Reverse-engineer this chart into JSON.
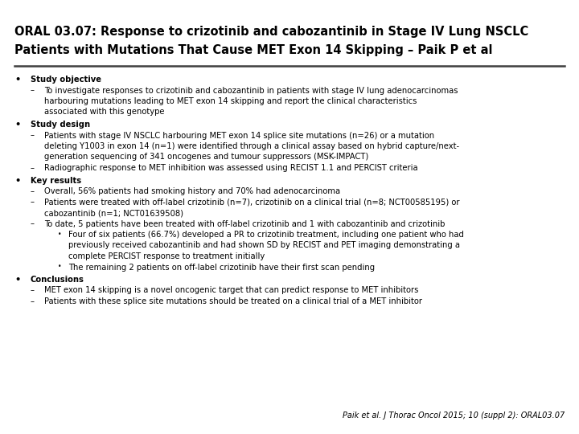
{
  "title_line1": "ORAL 03.07: Response to crizotinib and cabozantinib in Stage IV Lung NSCLC",
  "title_line2": "Patients with Mutations That Cause MET Exon 14 Skipping – Paik P et al",
  "bg_color": "#ffffff",
  "title_color": "#000000",
  "divider_color": "#404040",
  "body_color": "#000000",
  "citation": "Paik et al. J Thorac Oncol 2015; 10 (suppl 2): ORAL03.07",
  "title_fontsize": 10.5,
  "body_fontsize": 7.2,
  "sections": [
    {
      "bullet": "Study objective",
      "items": [
        {
          "type": "dash",
          "lines": [
            "To investigate responses to crizotinib and cabozantinib in patients with stage IV lung adenocarcinomas",
            "harbouring mutations leading to MET exon 14 skipping and report the clinical characteristics",
            "associated with this genotype"
          ]
        }
      ]
    },
    {
      "bullet": "Study design",
      "items": [
        {
          "type": "dash",
          "lines": [
            "Patients with stage IV NSCLC harbouring MET exon 14 splice site mutations (n=26) or a mutation",
            "deleting Y1003 in exon 14 (n=1) were identified through a clinical assay based on hybrid capture/next-",
            "generation sequencing of 341 oncogenes and tumour suppressors (MSK-IMPACT)"
          ]
        },
        {
          "type": "dash",
          "lines": [
            "Radiographic response to MET inhibition was assessed using RECIST 1.1 and PERCIST criteria"
          ]
        }
      ]
    },
    {
      "bullet": "Key results",
      "items": [
        {
          "type": "dash",
          "lines": [
            "Overall, 56% patients had smoking history and 70% had adenocarcinoma"
          ]
        },
        {
          "type": "dash",
          "lines": [
            "Patients were treated with off-label crizotinib (n=7), crizotinib on a clinical trial (n=8; NCT00585195) or",
            "cabozantinib (n=1; NCT01639508)"
          ]
        },
        {
          "type": "dash",
          "lines": [
            "To date, 5 patients have been treated with off-label crizotinib and 1 with cabozantinib and crizotinib"
          ]
        },
        {
          "type": "subdash",
          "lines": [
            "Four of six patients (66.7%) developed a PR to crizotinib treatment, including one patient who had",
            "previously received cabozantinib and had shown SD by RECIST and PET imaging demonstrating a",
            "complete PERCIST response to treatment initially"
          ]
        },
        {
          "type": "subdash",
          "lines": [
            "The remaining 2 patients on off-label crizotinib have their first scan pending"
          ]
        }
      ]
    },
    {
      "bullet": "Conclusions",
      "items": [
        {
          "type": "dash",
          "lines": [
            "MET exon 14 skipping is a novel oncogenic target that can predict response to MET inhibitors"
          ]
        },
        {
          "type": "dash",
          "lines": [
            "Patients with these splice site mutations should be treated on a clinical trial of a MET inhibitor"
          ]
        }
      ]
    }
  ]
}
